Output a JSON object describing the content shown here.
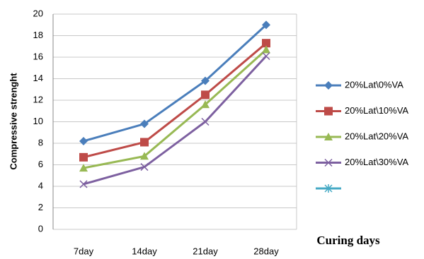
{
  "chart_data": {
    "type": "line",
    "y_label": "Compressive strenght",
    "x_label": "Curing days",
    "categories": [
      "7day",
      "14day",
      "21day",
      "28day"
    ],
    "series": [
      {
        "name": "20%Lat\\0%VA",
        "color": "#4a7ebb",
        "marker": "diamond",
        "values": [
          8.2,
          9.8,
          13.8,
          19
        ]
      },
      {
        "name": "20%Lat\\10%VA",
        "color": "#be4b48",
        "marker": "square",
        "values": [
          6.7,
          8.1,
          12.5,
          17.3
        ]
      },
      {
        "name": "20%Lat\\20%VA",
        "color": "#98b954",
        "marker": "triangle",
        "values": [
          5.7,
          6.8,
          11.6,
          16.7
        ]
      },
      {
        "name": "20%Lat\\30%VA",
        "color": "#7d60a0",
        "marker": "x",
        "values": [
          4.2,
          5.8,
          10,
          16.1
        ]
      },
      {
        "color": "#46aac5",
        "marker": "asterisk",
        "values": [
          null,
          null,
          null,
          null
        ]
      }
    ],
    "ylim": [
      0,
      20
    ],
    "yticks": [
      0,
      2,
      4,
      6,
      8,
      10,
      12,
      14,
      16,
      18,
      20
    ],
    "grid": true
  }
}
